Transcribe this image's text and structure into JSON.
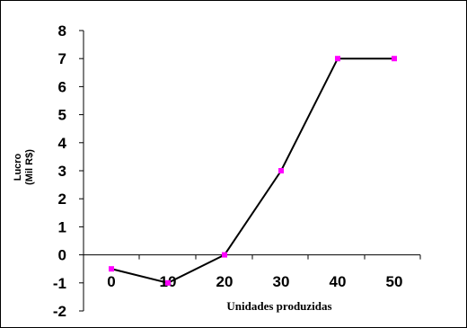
{
  "chart_data": {
    "type": "line",
    "x": [
      0,
      10,
      20,
      30,
      40,
      50
    ],
    "values": [
      -0.5,
      -1,
      0,
      3,
      7,
      7
    ],
    "xlabel": "Unidades produzidas",
    "ylabel_line1": "Lucro",
    "ylabel_line2": "(Mil R$)",
    "x_ticks": [
      "0",
      "10",
      "20",
      "30",
      "40",
      "50"
    ],
    "y_ticks": [
      "-2",
      "-1",
      "0",
      "1",
      "2",
      "3",
      "4",
      "5",
      "6",
      "7",
      "8"
    ],
    "ylim": [
      -2,
      8
    ],
    "grid": false,
    "line_color": "#000000",
    "marker_color": "#ff00ff"
  }
}
